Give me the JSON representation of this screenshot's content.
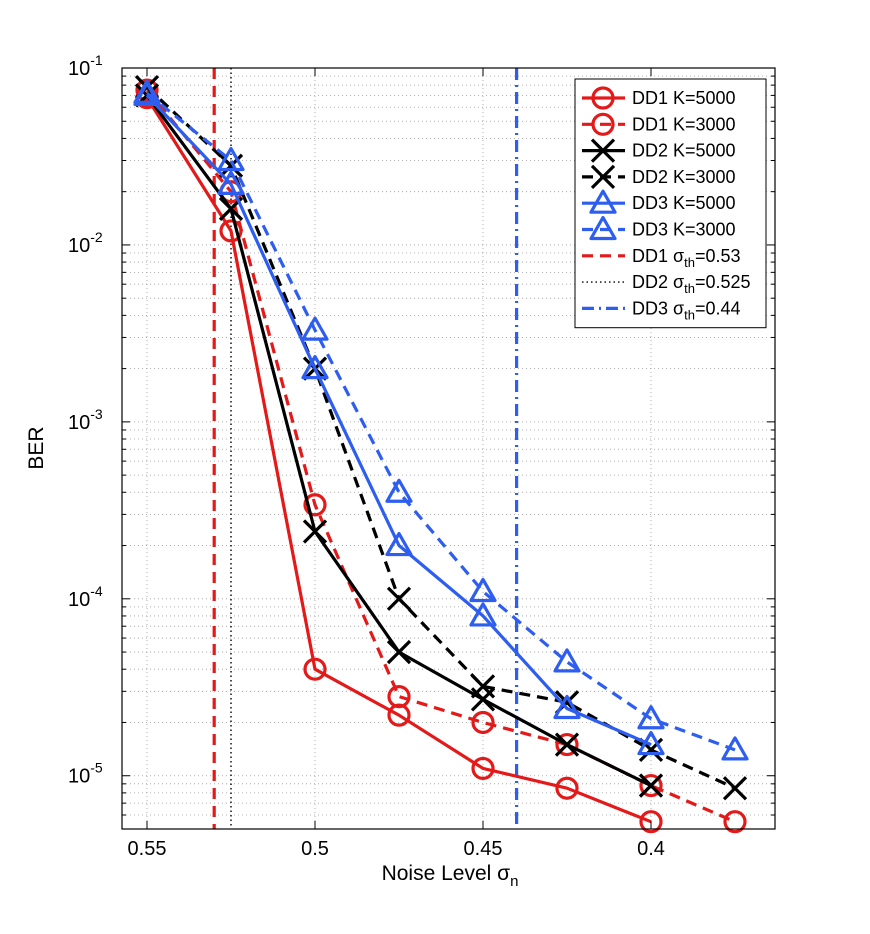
{
  "chart_data": {
    "type": "line",
    "title": "",
    "xlabel": "Noise Level σ",
    "xlabel_sub": "n",
    "ylabel": "BER",
    "x_reversed": true,
    "xlim": [
      0.55,
      0.375
    ],
    "ylim": [
      5e-06,
      0.1
    ],
    "yscale": "log",
    "grid": true,
    "legend_position": "top-right",
    "x_ticks": [
      {
        "value": 0.55,
        "label": "0.55"
      },
      {
        "value": 0.5,
        "label": "0.5"
      },
      {
        "value": 0.45,
        "label": "0.45"
      },
      {
        "value": 0.4,
        "label": "0.4"
      }
    ],
    "y_ticks": [
      {
        "value": 0.1,
        "base": "10",
        "exp": "-1"
      },
      {
        "value": 0.01,
        "base": "10",
        "exp": "-2"
      },
      {
        "value": 0.001,
        "base": "10",
        "exp": "-3"
      },
      {
        "value": 0.0001,
        "base": "10",
        "exp": "-4"
      },
      {
        "value": 1e-05,
        "base": "10",
        "exp": "-5"
      }
    ],
    "series": [
      {
        "name": "DD1 K=5000",
        "color": "#e41a1a",
        "dash": "solid",
        "marker": "circle",
        "x": [
          0.55,
          0.525,
          0.5,
          0.475,
          0.45,
          0.425,
          0.4
        ],
        "y": [
          0.068,
          0.012,
          4e-05,
          2.2e-05,
          1.1e-05,
          8.5e-06,
          5.5e-06
        ]
      },
      {
        "name": "DD1 K=3000",
        "color": "#e41a1a",
        "dash": "dashed",
        "marker": "circle",
        "x": [
          0.55,
          0.525,
          0.5,
          0.475,
          0.45,
          0.425,
          0.4,
          0.375
        ],
        "y": [
          0.075,
          0.02,
          0.00034,
          2.8e-05,
          2e-05,
          1.5e-05,
          8.8e-06,
          5.5e-06
        ]
      },
      {
        "name": "DD2 K=5000",
        "color": "#000000",
        "dash": "solid",
        "marker": "x",
        "x": [
          0.55,
          0.525,
          0.5,
          0.475,
          0.45,
          0.425,
          0.4
        ],
        "y": [
          0.07,
          0.016,
          0.00024,
          5e-05,
          2.7e-05,
          1.5e-05,
          8.8e-06
        ]
      },
      {
        "name": "DD2 K=3000",
        "color": "#000000",
        "dash": "dashed",
        "marker": "x",
        "x": [
          0.55,
          0.525,
          0.5,
          0.475,
          0.45,
          0.425,
          0.4,
          0.375
        ],
        "y": [
          0.078,
          0.028,
          0.002,
          0.0001,
          3.2e-05,
          2.6e-05,
          1.4e-05,
          8.5e-06
        ]
      },
      {
        "name": "DD3 K=5000",
        "color": "#2e5ef0",
        "dash": "solid",
        "marker": "triangle",
        "x": [
          0.55,
          0.525,
          0.5,
          0.475,
          0.45,
          0.425,
          0.4
        ],
        "y": [
          0.07,
          0.022,
          0.002,
          0.0002,
          8e-05,
          2.4e-05,
          1.5e-05
        ]
      },
      {
        "name": "DD3 K=3000",
        "color": "#2e5ef0",
        "dash": "dashed",
        "marker": "triangle",
        "x": [
          0.55,
          0.525,
          0.5,
          0.475,
          0.45,
          0.425,
          0.4,
          0.375
        ],
        "y": [
          0.072,
          0.03,
          0.0033,
          0.0004,
          0.00011,
          4.4e-05,
          2.1e-05,
          1.4e-05
        ]
      }
    ],
    "thresholds": [
      {
        "label_prefix": "DD1",
        "label_sub": "th",
        "label_value": "=0.53",
        "x": 0.53,
        "color": "#e41a1a",
        "style": "dashed"
      },
      {
        "label_prefix": "DD2",
        "label_sub": "th",
        "label_value": "=0.525",
        "x": 0.525,
        "color": "#000000",
        "style": "dotted"
      },
      {
        "label_prefix": "DD3",
        "label_sub": "th",
        "label_value": "=0.44",
        "x": 0.44,
        "color": "#2e5ef0",
        "style": "dashdot"
      }
    ]
  }
}
